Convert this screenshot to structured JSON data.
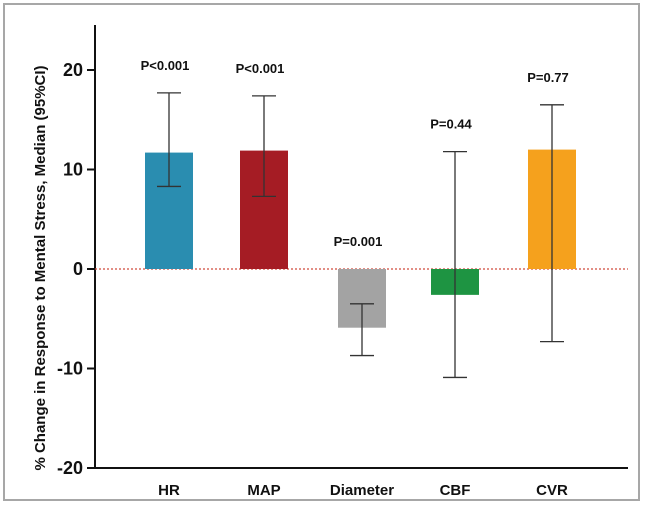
{
  "chart_data": {
    "type": "bar",
    "title": "",
    "xlabel": "",
    "ylabel": "% Change in Response to Mental Stress, Median (95%CI)",
    "ylim": [
      -20,
      24
    ],
    "yticks": [
      -20,
      -10,
      0,
      10,
      20
    ],
    "grid": false,
    "reference_line": {
      "y": 0,
      "style": "dotted",
      "color": "#d04a3c"
    },
    "categories": [
      "HR",
      "MAP",
      "Diameter",
      "CBF",
      "CVR"
    ],
    "values": [
      11.7,
      11.9,
      -5.9,
      -2.6,
      12.0
    ],
    "ci_low": [
      8.3,
      7.3,
      -8.7,
      -10.9,
      -7.3
    ],
    "ci_high": [
      17.7,
      17.4,
      -3.5,
      11.8,
      16.5
    ],
    "colors": [
      "#2a8db0",
      "#a51c24",
      "#a3a3a3",
      "#1e9442",
      "#f5a11d"
    ],
    "pvalues": [
      "P<0.001",
      "P<0.001",
      "P=0.001",
      "P=0.44",
      "P=0.77"
    ]
  }
}
